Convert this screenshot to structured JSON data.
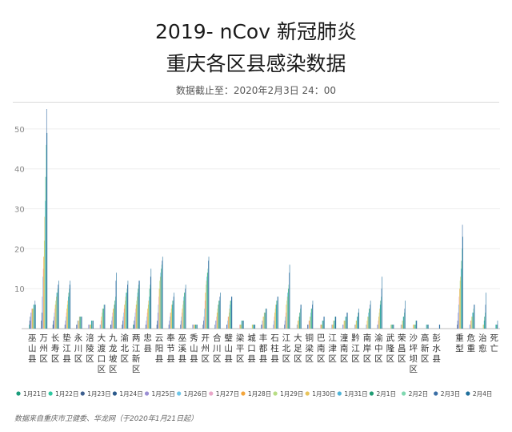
{
  "header": {
    "title_line1": "2019- nCov 新冠肺炎",
    "title_line2": "重庆各区县感染数据",
    "subtitle": "数据截止至：2020年2月3日 24：00"
  },
  "source_note": "数据来自重庆市卫健委、华龙网（于2020年1月21日起）",
  "chart_data": {
    "type": "bar",
    "ylim": [
      0,
      55
    ],
    "yticks": [
      10,
      20,
      30,
      40,
      50
    ],
    "categories": [
      "巫山县",
      "万州区",
      "长寿区",
      "垫江县",
      "永川区",
      "涪陵区",
      "大渡口区",
      "九龙坡区",
      "渝北区",
      "两江新区",
      "忠县",
      "云阳县",
      "奉节县",
      "巫溪县",
      "秀山县",
      "开州区",
      "合川区",
      "璧山县",
      "梁平区",
      "城口县",
      "丰都县",
      "石柱县",
      "江北区",
      "大足区",
      "铜梁区",
      "巴南区",
      "江津区",
      "潼南区",
      "黔江区",
      "南岸区",
      "渝中区",
      "武隆区",
      "荣昌区",
      "沙坪坝区",
      "高新区",
      "彭水县",
      "重型",
      "危重",
      "治愈",
      "死亡"
    ],
    "series_names": [
      "1月21日",
      "1月22日",
      "1月23日",
      "1月24日",
      "1月25日",
      "1月26日",
      "1月27日",
      "1月28日",
      "1月29日",
      "1月30日",
      "1月31日",
      "2月1日",
      "2月2日",
      "2月3日",
      "2月4日"
    ],
    "colors": [
      "#1a9c7b",
      "#2fc8a0",
      "#3e5f8f",
      "#2b5a8c",
      "#9b8fd4",
      "#6ec6e8",
      "#e9a6c8",
      "#f3a53b",
      "#b7dd84",
      "#e8c35a",
      "#4fb4d8",
      "#1f9c73",
      "#7fd8b0",
      "#3a6ea5",
      "#1f6f9c"
    ],
    "series": [
      {
        "name": "1月21日",
        "values": [
          0,
          0,
          0,
          0,
          0,
          0,
          0,
          0,
          0,
          0,
          0,
          0,
          0,
          0,
          0,
          0,
          0,
          0,
          0,
          0,
          0,
          0,
          0,
          0,
          0,
          0,
          0,
          0,
          0,
          0,
          0,
          0,
          0,
          0,
          0,
          0,
          0,
          0,
          0,
          0
        ]
      },
      {
        "name": "1月22日",
        "values": [
          1,
          0,
          0,
          0,
          0,
          0,
          0,
          0,
          0,
          1,
          0,
          0,
          0,
          0,
          0,
          0,
          0,
          0,
          0,
          0,
          0,
          0,
          0,
          0,
          0,
          0,
          0,
          0,
          0,
          0,
          0,
          0,
          0,
          0,
          0,
          0,
          0,
          0,
          0,
          0
        ]
      },
      {
        "name": "1月23日",
        "values": [
          2,
          2,
          1,
          0,
          0,
          0,
          0,
          1,
          1,
          1,
          0,
          1,
          0,
          0,
          0,
          1,
          0,
          0,
          0,
          0,
          0,
          0,
          0,
          0,
          0,
          0,
          0,
          0,
          0,
          0,
          0,
          0,
          0,
          0,
          0,
          0,
          1,
          0,
          0,
          0
        ]
      },
      {
        "name": "1月24日",
        "values": [
          3,
          4,
          2,
          1,
          1,
          0,
          0,
          1,
          2,
          2,
          1,
          2,
          1,
          1,
          0,
          2,
          1,
          1,
          0,
          0,
          1,
          0,
          1,
          0,
          1,
          0,
          0,
          0,
          0,
          0,
          0,
          0,
          0,
          0,
          0,
          0,
          2,
          0,
          0,
          0
        ]
      },
      {
        "name": "1月25日",
        "values": [
          4,
          8,
          3,
          2,
          1,
          1,
          1,
          2,
          3,
          3,
          2,
          4,
          2,
          2,
          1,
          3,
          2,
          1,
          0,
          0,
          1,
          1,
          2,
          0,
          1,
          0,
          0,
          1,
          0,
          0,
          1,
          0,
          0,
          0,
          0,
          0,
          4,
          1,
          0,
          0
        ]
      },
      {
        "name": "1月26日",
        "values": [
          4,
          13,
          4,
          3,
          2,
          1,
          1,
          3,
          4,
          4,
          3,
          6,
          3,
          3,
          1,
          5,
          2,
          2,
          0,
          0,
          2,
          2,
          3,
          1,
          1,
          0,
          1,
          1,
          1,
          1,
          1,
          0,
          1,
          0,
          0,
          0,
          6,
          1,
          0,
          0
        ]
      },
      {
        "name": "1月27日",
        "values": [
          5,
          15,
          5,
          4,
          2,
          1,
          2,
          4,
          5,
          5,
          4,
          8,
          4,
          4,
          1,
          7,
          3,
          3,
          1,
          0,
          2,
          3,
          4,
          1,
          2,
          1,
          1,
          1,
          1,
          1,
          2,
          0,
          1,
          0,
          0,
          0,
          8,
          2,
          0,
          0
        ]
      },
      {
        "name": "1月28日",
        "values": [
          5,
          18,
          6,
          5,
          2,
          1,
          3,
          5,
          6,
          6,
          5,
          10,
          4,
          5,
          1,
          9,
          4,
          3,
          1,
          0,
          3,
          4,
          6,
          2,
          2,
          1,
          1,
          2,
          1,
          2,
          3,
          0,
          1,
          1,
          0,
          0,
          10,
          2,
          0,
          0
        ]
      },
      {
        "name": "1月29日",
        "values": [
          5,
          22,
          7,
          6,
          2,
          1,
          4,
          5,
          7,
          7,
          6,
          12,
          5,
          6,
          1,
          11,
          5,
          4,
          1,
          1,
          3,
          5,
          7,
          2,
          3,
          1,
          1,
          2,
          2,
          3,
          4,
          1,
          2,
          1,
          0,
          0,
          12,
          3,
          1,
          0
        ]
      },
      {
        "name": "1月30日",
        "values": [
          5,
          28,
          8,
          7,
          3,
          1,
          5,
          6,
          8,
          8,
          7,
          13,
          6,
          7,
          1,
          12,
          6,
          5,
          1,
          1,
          4,
          6,
          8,
          3,
          3,
          1,
          2,
          2,
          2,
          3,
          5,
          1,
          2,
          1,
          0,
          0,
          13,
          3,
          1,
          0
        ]
      },
      {
        "name": "1月31日",
        "values": [
          6,
          32,
          9,
          8,
          3,
          2,
          5,
          6,
          9,
          9,
          8,
          14,
          6,
          8,
          1,
          13,
          6,
          6,
          2,
          1,
          4,
          6,
          9,
          3,
          4,
          2,
          2,
          3,
          3,
          4,
          6,
          1,
          3,
          1,
          1,
          0,
          15,
          4,
          2,
          1
        ]
      },
      {
        "name": "2月1日",
        "values": [
          6,
          38,
          9,
          9,
          3,
          2,
          5,
          7,
          9,
          10,
          10,
          15,
          7,
          9,
          1,
          14,
          7,
          7,
          2,
          1,
          4,
          7,
          10,
          4,
          5,
          2,
          2,
          3,
          3,
          5,
          7,
          1,
          3,
          1,
          1,
          0,
          17,
          4,
          3,
          1
        ]
      },
      {
        "name": "2月2日",
        "values": [
          6,
          46,
          10,
          10,
          3,
          2,
          6,
          8,
          10,
          11,
          11,
          16,
          7,
          9,
          1,
          15,
          7,
          7,
          2,
          1,
          5,
          7,
          11,
          5,
          5,
          2,
          3,
          3,
          4,
          5,
          8,
          1,
          4,
          2,
          1,
          0,
          20,
          5,
          4,
          1
        ]
      },
      {
        "name": "2月3日",
        "values": [
          7,
          55,
          11,
          11,
          3,
          2,
          6,
          12,
          11,
          12,
          13,
          17,
          8,
          10,
          1,
          17,
          8,
          8,
          2,
          1,
          5,
          8,
          14,
          6,
          6,
          3,
          3,
          4,
          4,
          6,
          10,
          1,
          5,
          2,
          1,
          1,
          26,
          6,
          6,
          1
        ]
      },
      {
        "name": "2月4日",
        "values": [
          6,
          49,
          12,
          12,
          3,
          2,
          6,
          14,
          12,
          12,
          15,
          18,
          9,
          11,
          1,
          18,
          9,
          8,
          2,
          1,
          5,
          8,
          16,
          6,
          7,
          3,
          3,
          4,
          5,
          7,
          13,
          1,
          7,
          2,
          1,
          1,
          23,
          6,
          9,
          2
        ]
      }
    ]
  }
}
